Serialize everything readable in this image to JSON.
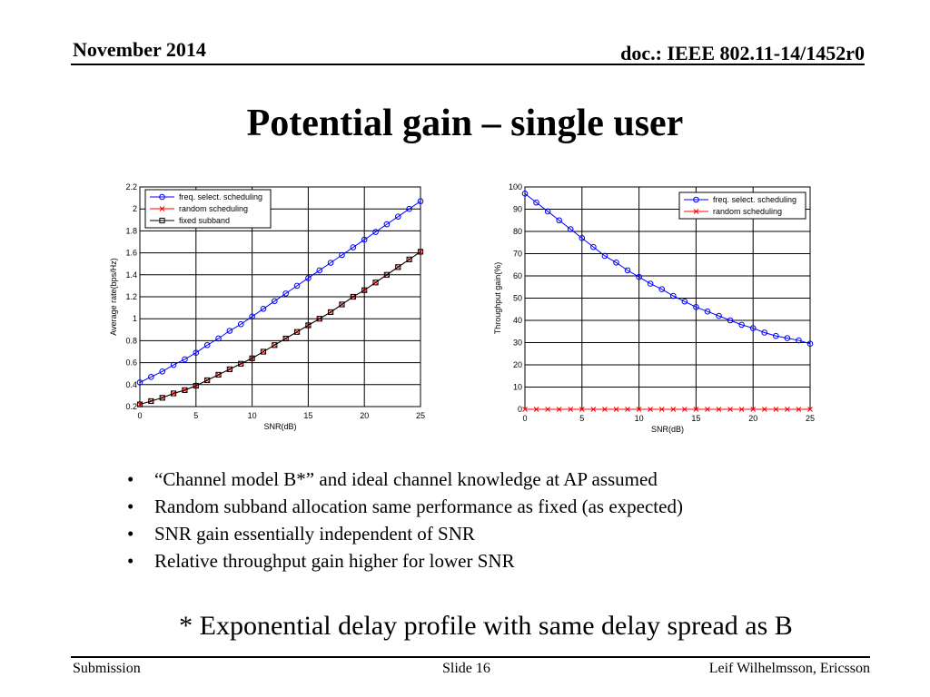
{
  "header": {
    "date": "November 2014",
    "doc": "doc.: IEEE 802.11-14/1452r0"
  },
  "slide_title": "Potential gain – single user",
  "chart_data": [
    {
      "type": "line",
      "xlabel": "SNR(dB)",
      "ylabel": "Average rate(bps/Hz)",
      "xlim": [
        0,
        25
      ],
      "ylim": [
        0.2,
        2.2
      ],
      "xticks": [
        0,
        5,
        10,
        15,
        20,
        25
      ],
      "yticks": [
        0.2,
        0.4,
        0.6,
        0.8,
        1,
        1.2,
        1.4,
        1.6,
        1.8,
        2,
        2.2
      ],
      "ytick_labels": [
        "0.2",
        "0.4",
        "0.6",
        "0.8",
        "1",
        "1.2",
        "1.4",
        "1.6",
        "1.8",
        "2",
        "2.2"
      ],
      "grid": true,
      "legend": "top-left",
      "x": [
        0,
        1,
        2,
        3,
        4,
        5,
        6,
        7,
        8,
        9,
        10,
        11,
        12,
        13,
        14,
        15,
        16,
        17,
        18,
        19,
        20,
        21,
        22,
        23,
        24,
        25
      ],
      "series": [
        {
          "name": "freq. select. scheduling",
          "color": "#0000ff",
          "marker": "circle",
          "values": [
            0.42,
            0.47,
            0.52,
            0.58,
            0.63,
            0.69,
            0.76,
            0.82,
            0.89,
            0.95,
            1.02,
            1.09,
            1.16,
            1.23,
            1.3,
            1.37,
            1.44,
            1.51,
            1.58,
            1.65,
            1.72,
            1.79,
            1.86,
            1.93,
            2.0,
            2.07
          ]
        },
        {
          "name": "random scheduling",
          "color": "#ff0000",
          "marker": "x",
          "values": [
            0.22,
            0.25,
            0.28,
            0.32,
            0.35,
            0.39,
            0.44,
            0.49,
            0.54,
            0.59,
            0.64,
            0.7,
            0.76,
            0.82,
            0.88,
            0.94,
            1.0,
            1.06,
            1.13,
            1.2,
            1.26,
            1.33,
            1.4,
            1.47,
            1.54,
            1.61
          ]
        },
        {
          "name": "fixed subband",
          "color": "#000000",
          "marker": "square",
          "values": [
            0.22,
            0.25,
            0.28,
            0.32,
            0.35,
            0.39,
            0.44,
            0.49,
            0.54,
            0.59,
            0.64,
            0.7,
            0.76,
            0.82,
            0.88,
            0.94,
            1.0,
            1.06,
            1.13,
            1.2,
            1.26,
            1.33,
            1.4,
            1.47,
            1.54,
            1.61
          ]
        }
      ]
    },
    {
      "type": "line",
      "xlabel": "SNR(dB)",
      "ylabel": "Throughput gain(%)",
      "xlim": [
        0,
        25
      ],
      "ylim": [
        0,
        100
      ],
      "xticks": [
        0,
        5,
        10,
        15,
        20,
        25
      ],
      "yticks": [
        0,
        10,
        20,
        30,
        40,
        50,
        60,
        70,
        80,
        90,
        100
      ],
      "ytick_labels": [
        "0",
        "10",
        "20",
        "30",
        "40",
        "50",
        "60",
        "70",
        "80",
        "90",
        "100"
      ],
      "grid": true,
      "legend": "top-right",
      "x": [
        0,
        1,
        2,
        3,
        4,
        5,
        6,
        7,
        8,
        9,
        10,
        11,
        12,
        13,
        14,
        15,
        16,
        17,
        18,
        19,
        20,
        21,
        22,
        23,
        24,
        25
      ],
      "series": [
        {
          "name": "freq. select. scheduling",
          "color": "#0000ff",
          "marker": "circle",
          "values": [
            97,
            93,
            89,
            85,
            81,
            77,
            73,
            69,
            66,
            62.5,
            59.5,
            56.5,
            54,
            51,
            48.5,
            46,
            44,
            42,
            40,
            38,
            36.5,
            34.5,
            33,
            32,
            31,
            29.5
          ]
        },
        {
          "name": "random scheduling",
          "color": "#ff0000",
          "marker": "x",
          "values": [
            0,
            0,
            0,
            0,
            0,
            0,
            0,
            0,
            0,
            0,
            0,
            0,
            0,
            0,
            0,
            0,
            0,
            0,
            0,
            0,
            0,
            0,
            0,
            0,
            0,
            0
          ]
        }
      ]
    }
  ],
  "bullets": [
    "“Channel model B*” and ideal channel knowledge at AP assumed",
    "Random subband allocation same performance as fixed (as expected)",
    "SNR gain essentially independent of SNR",
    "Relative throughput gain higher for lower SNR"
  ],
  "bullet_symbol": "•",
  "footnote": "* Exponential delay profile with same delay spread as B",
  "footer": {
    "left": "Submission",
    "center": "Slide 16",
    "right": "Leif Wilhelmsson, Ericsson"
  }
}
